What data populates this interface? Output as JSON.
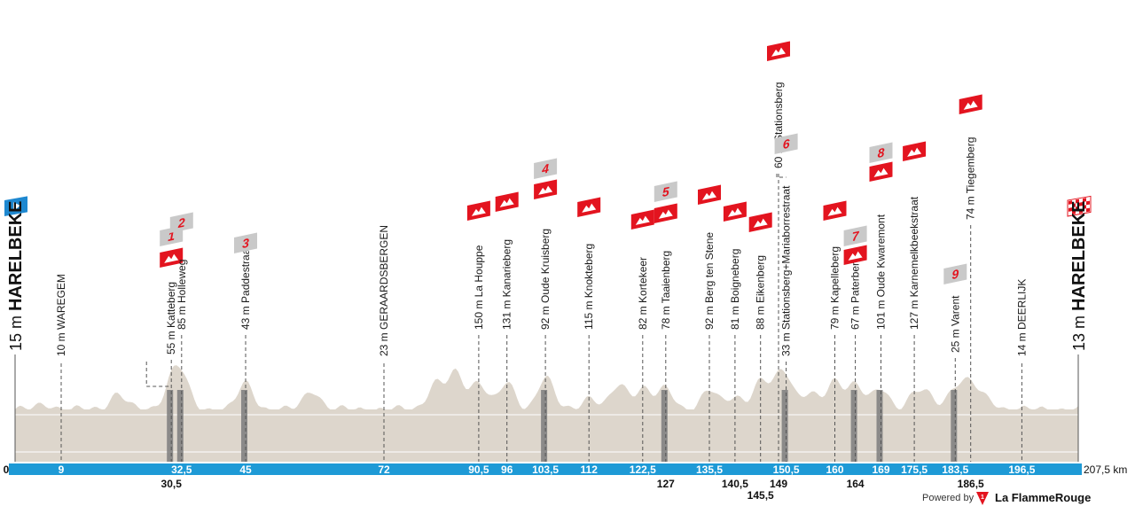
{
  "chart_data": {
    "type": "area",
    "title": "",
    "xlabel": "",
    "ylabel": "",
    "unit_km": "km",
    "total_km": "207,5",
    "total_label": "207,5 km",
    "start_km_label": "0",
    "start": {
      "km": 0,
      "name": "HARELBEKE",
      "alt": "15 m",
      "alt_m": 15
    },
    "finish": {
      "km": 207.5,
      "name": "HARELBEKE",
      "alt": "13 m",
      "alt_m": 13
    },
    "towns": [
      {
        "km": 9,
        "label": "10 m WAREGEM",
        "km_label": "9"
      },
      {
        "km": 72,
        "label": "23 m GERAARDSBERGEN",
        "km_label": "72"
      },
      {
        "km": 196.5,
        "label": "14 m DEERLIJK",
        "km_label": "196,5"
      }
    ],
    "climbs": [
      {
        "km": 30.5,
        "label": "55 m Katteberg",
        "km_label": "30,5",
        "sector": "1",
        "cobbled": true,
        "km_row": 2
      },
      {
        "km": 32.5,
        "label": "85 m Holleweg",
        "km_label": "32,5",
        "sector": "2",
        "cobbled": true,
        "km_row": 1
      },
      {
        "km": 45,
        "label": "43 m Paddestraat",
        "km_label": "45",
        "sector": "3",
        "cobbled": true,
        "km_row": 1
      },
      {
        "km": 90.5,
        "label": "150 m La Houppe",
        "km_label": "90,5",
        "cobbled": false,
        "km_row": 1
      },
      {
        "km": 96,
        "label": "131 m Kanarieberg",
        "km_label": "96",
        "cobbled": false,
        "km_row": 1
      },
      {
        "km": 103.5,
        "label": "92 m Oude Kruisberg",
        "km_label": "103,5",
        "sector": "4",
        "cobbled": true,
        "km_row": 1
      },
      {
        "km": 112,
        "label": "115 m Knokteberg",
        "km_label": "112",
        "cobbled": false,
        "km_row": 1
      },
      {
        "km": 122.5,
        "label": "82 m Kortekeer",
        "km_label": "122,5",
        "cobbled": false,
        "km_row": 1
      },
      {
        "km": 127,
        "label": "78 m Taaienberg",
        "km_label": "127",
        "sector": "5",
        "cobbled": true,
        "km_row": 2
      },
      {
        "km": 135.5,
        "label": "92 m Berg ten Stene",
        "km_label": "135,5",
        "cobbled": false,
        "km_row": 1
      },
      {
        "km": 140.5,
        "label": "81 m Boigneberg",
        "km_label": "140,5",
        "cobbled": false,
        "km_row": 2
      },
      {
        "km": 145.5,
        "label": "88 m Eikenberg",
        "km_label": "145,5",
        "cobbled": false,
        "km_row": 3
      },
      {
        "km": 149,
        "label": "60 m Stationsberg",
        "km_label": "149",
        "cobbled": false,
        "km_row": 2
      },
      {
        "km": 150.5,
        "label": "33 m Stationsberg+Mariaborrestraat",
        "km_label": "150,5",
        "sector": "6",
        "cobbled": true,
        "km_row": 1
      },
      {
        "km": 160,
        "label": "79 m Kapelleberg",
        "km_label": "160",
        "cobbled": false,
        "km_row": 1
      },
      {
        "km": 164,
        "label": "67 m Paterberg",
        "km_label": "164",
        "sector": "7",
        "cobbled": true,
        "km_row": 2
      },
      {
        "km": 169,
        "label": "101 m Oude Kwaremont",
        "km_label": "169",
        "sector": "8",
        "cobbled": true,
        "km_row": 1
      },
      {
        "km": 175.5,
        "label": "127 m Karnemelkbeekstraat",
        "km_label": "175,5",
        "cobbled": false,
        "km_row": 1
      },
      {
        "km": 183.5,
        "label": "25 m Varent",
        "km_label": "183,5",
        "sector": "9",
        "cobbled": true,
        "km_row": 1
      },
      {
        "km": 186.5,
        "label": "74 m Tiegemberg",
        "km_label": "186,5",
        "cobbled": false,
        "km_row": 2
      }
    ],
    "colors": {
      "profile_fill": "#ddd6cc",
      "axis_bar": "#1e9ad6",
      "climb_icon": "#e3141f",
      "cobble_badge": "#c9c9c9",
      "cobble_sector": "#7c7c7c",
      "start_flag": "#1e88d0"
    }
  },
  "brand": {
    "powered_by": "Powered by",
    "name": "La FlammeRouge"
  }
}
